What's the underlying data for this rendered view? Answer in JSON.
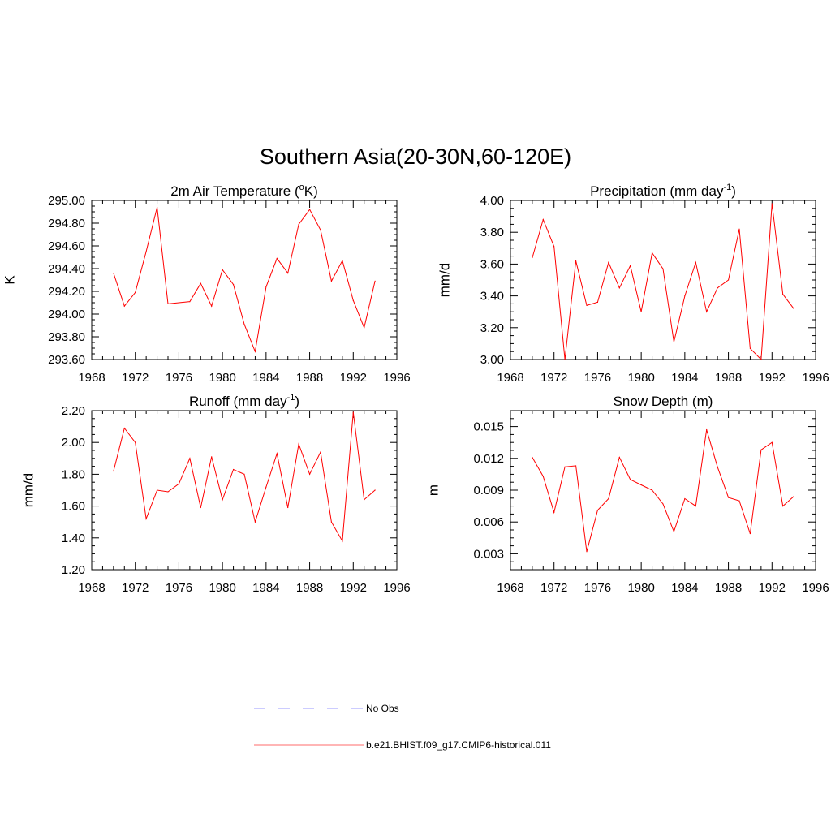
{
  "title": "Southern Asia(20-30N,60-120E)",
  "legend": [
    {
      "label": "No Obs",
      "color": "#9999ff",
      "dash": "dashed"
    },
    {
      "label": "b.e21.BHIST.f09_g17.CMIP6-historical.011",
      "color": "#ff6b6b",
      "dash": "solid"
    }
  ],
  "chart_data": [
    {
      "type": "line",
      "title": "2m Air Temperature (",
      "title_sup": "o",
      "title_suffix": "K)",
      "xlabel": "",
      "ylabel": "K",
      "xlim": [
        1968,
        1996
      ],
      "ylim": [
        293.6,
        295.0
      ],
      "xticks": [
        1968,
        1972,
        1976,
        1980,
        1984,
        1988,
        1992,
        1996
      ],
      "xtick_labels": [
        "1968",
        "1972",
        "1976",
        "1980",
        "1984",
        "1988",
        "1992",
        "1996"
      ],
      "yticks": [
        293.6,
        293.8,
        294.0,
        294.2,
        294.4,
        294.6,
        294.8,
        295.0
      ],
      "ytick_labels": [
        "293.60",
        "293.80",
        "294.00",
        "294.20",
        "294.40",
        "294.60",
        "294.80",
        "295.00"
      ],
      "color": "#ff0000",
      "x": [
        1970,
        1971,
        1972,
        1973,
        1974,
        1975,
        1976,
        1977,
        1978,
        1979,
        1980,
        1981,
        1982,
        1983,
        1984,
        1985,
        1986,
        1987,
        1988,
        1989,
        1990,
        1991,
        1992,
        1993,
        1994
      ],
      "values": [
        294.36,
        294.07,
        294.19,
        294.55,
        294.94,
        294.09,
        294.1,
        294.11,
        294.27,
        294.07,
        294.39,
        294.26,
        293.91,
        293.67,
        294.24,
        294.49,
        294.36,
        294.79,
        294.92,
        294.74,
        294.29,
        294.47,
        294.12,
        293.88,
        294.29
      ]
    },
    {
      "type": "line",
      "title": "Precipitation (mm day",
      "title_sup": "-1",
      "title_suffix": ")",
      "xlabel": "",
      "ylabel": "mm/d",
      "xlim": [
        1968,
        1996
      ],
      "ylim": [
        3.0,
        4.0
      ],
      "xticks": [
        1968,
        1972,
        1976,
        1980,
        1984,
        1988,
        1992,
        1996
      ],
      "xtick_labels": [
        "1968",
        "1972",
        "1976",
        "1980",
        "1984",
        "1988",
        "1992",
        "1996"
      ],
      "yticks": [
        3.0,
        3.2,
        3.4,
        3.6,
        3.8,
        4.0
      ],
      "ytick_labels": [
        "3.00",
        "3.20",
        "3.40",
        "3.60",
        "3.80",
        "4.00"
      ],
      "color": "#ff0000",
      "x": [
        1970,
        1971,
        1972,
        1973,
        1974,
        1975,
        1976,
        1977,
        1978,
        1979,
        1980,
        1981,
        1982,
        1983,
        1984,
        1985,
        1986,
        1987,
        1988,
        1989,
        1990,
        1991,
        1992,
        1993,
        1994
      ],
      "values": [
        3.64,
        3.88,
        3.71,
        3.0,
        3.62,
        3.34,
        3.36,
        3.61,
        3.45,
        3.59,
        3.3,
        3.67,
        3.57,
        3.11,
        3.4,
        3.61,
        3.3,
        3.45,
        3.5,
        3.82,
        3.07,
        3.0,
        3.98,
        3.41,
        3.32
      ]
    },
    {
      "type": "line",
      "title": "Runoff (mm day",
      "title_sup": "-1",
      "title_suffix": ")",
      "xlabel": "",
      "ylabel": "mm/d",
      "xlim": [
        1968,
        1996
      ],
      "ylim": [
        1.2,
        2.2
      ],
      "xticks": [
        1968,
        1972,
        1976,
        1980,
        1984,
        1988,
        1992,
        1996
      ],
      "xtick_labels": [
        "1968",
        "1972",
        "1976",
        "1980",
        "1984",
        "1988",
        "1992",
        "1996"
      ],
      "yticks": [
        1.2,
        1.4,
        1.6,
        1.8,
        2.0,
        2.2
      ],
      "ytick_labels": [
        "1.20",
        "1.40",
        "1.60",
        "1.80",
        "2.00",
        "2.20"
      ],
      "color": "#ff0000",
      "x": [
        1970,
        1971,
        1972,
        1973,
        1974,
        1975,
        1976,
        1977,
        1978,
        1979,
        1980,
        1981,
        1982,
        1983,
        1984,
        1985,
        1986,
        1987,
        1988,
        1989,
        1990,
        1991,
        1992,
        1993,
        1994
      ],
      "values": [
        1.82,
        2.09,
        2.0,
        1.52,
        1.7,
        1.69,
        1.74,
        1.9,
        1.59,
        1.91,
        1.64,
        1.83,
        1.8,
        1.5,
        1.72,
        1.93,
        1.59,
        1.99,
        1.8,
        1.94,
        1.5,
        1.38,
        2.19,
        1.64,
        1.7
      ]
    },
    {
      "type": "line",
      "title": "Snow Depth (m)",
      "title_sup": "",
      "title_suffix": "",
      "xlabel": "",
      "ylabel": "m",
      "xlim": [
        1968,
        1996
      ],
      "ylim": [
        0.0015,
        0.0165
      ],
      "xticks": [
        1968,
        1972,
        1976,
        1980,
        1984,
        1988,
        1992,
        1996
      ],
      "xtick_labels": [
        "1968",
        "1972",
        "1976",
        "1980",
        "1984",
        "1988",
        "1992",
        "1996"
      ],
      "yticks": [
        0.003,
        0.006,
        0.009,
        0.012,
        0.015
      ],
      "ytick_labels": [
        "0.003",
        "0.006",
        "0.009",
        "0.012",
        "0.015"
      ],
      "color": "#ff0000",
      "x": [
        1970,
        1971,
        1972,
        1973,
        1974,
        1975,
        1976,
        1977,
        1978,
        1979,
        1980,
        1981,
        1982,
        1983,
        1984,
        1985,
        1986,
        1987,
        1988,
        1989,
        1990,
        1991,
        1992,
        1993,
        1994
      ],
      "values": [
        0.0121,
        0.0103,
        0.0069,
        0.0112,
        0.0113,
        0.0032,
        0.0071,
        0.0082,
        0.0121,
        0.01,
        0.0095,
        0.009,
        0.0077,
        0.0051,
        0.0082,
        0.0075,
        0.0147,
        0.0112,
        0.0083,
        0.008,
        0.0049,
        0.0128,
        0.0135,
        0.0075,
        0.0084
      ]
    }
  ]
}
